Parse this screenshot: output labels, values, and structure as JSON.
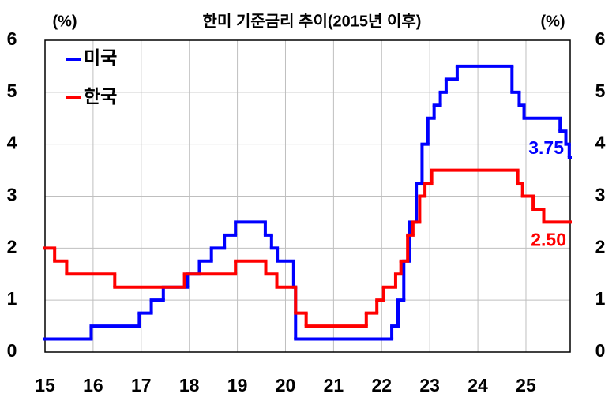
{
  "chart_data": {
    "type": "line",
    "step": "post",
    "title": "한미 기준금리 추이(2015년 이후)",
    "ylabel": "(%)",
    "y2label": "(%)",
    "xlim": [
      2015,
      2025.92
    ],
    "xticks": [
      {
        "value": 2015,
        "label": "15"
      },
      {
        "value": 2016,
        "label": "16"
      },
      {
        "value": 2017,
        "label": "17"
      },
      {
        "value": 2018,
        "label": "18"
      },
      {
        "value": 2019,
        "label": "19"
      },
      {
        "value": 2020,
        "label": "20"
      },
      {
        "value": 2021,
        "label": "21"
      },
      {
        "value": 2022,
        "label": "22"
      },
      {
        "value": 2023,
        "label": "23"
      },
      {
        "value": 2024,
        "label": "24"
      },
      {
        "value": 2025,
        "label": "25"
      }
    ],
    "ylim": [
      0,
      6
    ],
    "yticks": [
      0,
      1,
      2,
      3,
      4,
      5,
      6
    ],
    "y2lim": [
      0,
      6
    ],
    "y2ticks": [
      0,
      1,
      2,
      3,
      4,
      5,
      6
    ],
    "grid": true,
    "legend": "upper left",
    "series": [
      {
        "name": "미국",
        "color": "#0000ff",
        "x": [
          2015,
          2015.96,
          2016.96,
          2017.21,
          2017.46,
          2017.96,
          2018.21,
          2018.46,
          2018.73,
          2018.96,
          2019.58,
          2019.71,
          2019.83,
          2020.17,
          2020.21,
          2022.21,
          2022.34,
          2022.46,
          2022.57,
          2022.72,
          2022.84,
          2022.96,
          2023.09,
          2023.22,
          2023.34,
          2023.57,
          2024.71,
          2024.86,
          2024.96,
          2025.71,
          2025.83,
          2025.9
        ],
        "values": [
          0.25,
          0.5,
          0.75,
          1.0,
          1.25,
          1.5,
          1.75,
          2.0,
          2.25,
          2.5,
          2.25,
          2.0,
          1.75,
          1.25,
          0.25,
          0.5,
          1.0,
          1.75,
          2.5,
          3.25,
          4.0,
          4.5,
          4.75,
          5.0,
          5.25,
          5.5,
          5.0,
          4.75,
          4.5,
          4.25,
          4.0,
          3.75
        ],
        "value_labels": [
          null,
          null,
          null,
          null,
          null,
          null,
          null,
          null,
          null,
          null,
          null,
          null,
          null,
          null,
          null,
          null,
          null,
          null,
          null,
          null,
          null,
          null,
          null,
          null,
          null,
          null,
          null,
          null,
          null,
          null,
          null,
          "3.75"
        ]
      },
      {
        "name": "한국",
        "color": "#ff0000",
        "x": [
          2015,
          2015.2,
          2015.45,
          2016.45,
          2017.9,
          2018.96,
          2019.59,
          2019.82,
          2020.21,
          2020.43,
          2021.68,
          2021.9,
          2022.04,
          2022.29,
          2022.4,
          2022.54,
          2022.65,
          2022.79,
          2022.9,
          2023.04,
          2024.83,
          2024.93,
          2025.15,
          2025.37
        ],
        "values": [
          2.0,
          1.75,
          1.5,
          1.25,
          1.5,
          1.75,
          1.5,
          1.25,
          0.75,
          0.5,
          0.75,
          1.0,
          1.25,
          1.5,
          1.75,
          2.25,
          2.5,
          3.0,
          3.25,
          3.5,
          3.25,
          3.0,
          2.75,
          2.5
        ],
        "value_labels": [
          null,
          null,
          null,
          null,
          null,
          null,
          null,
          null,
          null,
          null,
          null,
          null,
          null,
          null,
          null,
          null,
          null,
          null,
          null,
          null,
          null,
          null,
          null,
          "2.50"
        ]
      }
    ]
  }
}
